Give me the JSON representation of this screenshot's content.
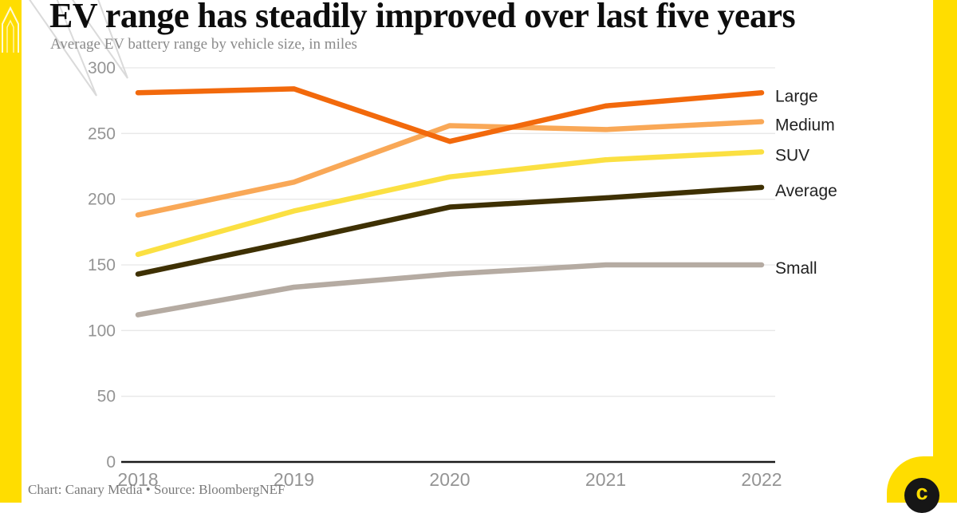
{
  "page": {
    "title": "EV range has steadily improved over last five years",
    "subtitle": "Average EV battery range by vehicle size, in miles",
    "attribution": "Chart: Canary Media • Source: BloombergNEF",
    "brand": {
      "accent_yellow": "#FFDD00",
      "logo_letter": "c",
      "logo_circle_color": "#161616"
    }
  },
  "chart_data": {
    "type": "line",
    "title": "EV range has steadily improved over last five years",
    "subtitle": "Average EV battery range by vehicle size, in miles",
    "categories": [
      "2018",
      "2019",
      "2020",
      "2021",
      "2022"
    ],
    "series": [
      {
        "name": "Large",
        "color": "#F2690C",
        "values": [
          281,
          284,
          244,
          271,
          281
        ]
      },
      {
        "name": "Medium",
        "color": "#F9A857",
        "values": [
          188,
          213,
          256,
          253,
          259
        ]
      },
      {
        "name": "SUV",
        "color": "#FBE042",
        "values": [
          158,
          191,
          217,
          230,
          236
        ]
      },
      {
        "name": "Average",
        "color": "#3E3003",
        "values": [
          143,
          168,
          194,
          201,
          209
        ]
      },
      {
        "name": "Small",
        "color": "#B5ABA2",
        "values": [
          112,
          133,
          143,
          150,
          150
        ]
      }
    ],
    "ylim": [
      0,
      300
    ],
    "yticks": [
      0,
      50,
      100,
      150,
      200,
      250,
      300
    ],
    "xlabel": "",
    "ylabel": "",
    "grid": "horizontal",
    "legend_position": "right-of-line-ends",
    "axis_color": "#1a1a1a",
    "grid_color": "#e8e8e8",
    "tick_label_color": "#949494",
    "legend_label_color": "#212121"
  }
}
